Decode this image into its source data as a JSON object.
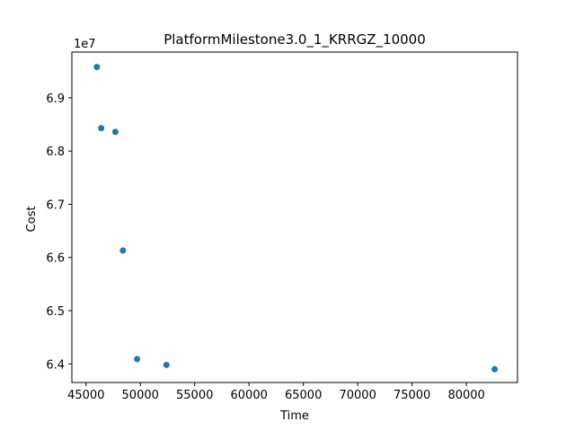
{
  "chart_data": {
    "type": "scatter",
    "title": "PlatformMilestone3.0_1_KRRGZ_10000",
    "xlabel": "Time",
    "ylabel": "Cost",
    "offset_text": "1e7",
    "xlim": [
      43700,
      84700
    ],
    "ylim": [
      6.365,
      6.986
    ],
    "y_scale_multiplier": 10000000,
    "xticks": [
      45000,
      50000,
      55000,
      60000,
      65000,
      70000,
      75000,
      80000
    ],
    "xtick_labels": [
      "45000",
      "50000",
      "55000",
      "60000",
      "65000",
      "70000",
      "75000",
      "80000"
    ],
    "yticks": [
      6.4,
      6.5,
      6.6,
      6.7,
      6.8,
      6.9
    ],
    "ytick_labels": [
      "6.4",
      "6.5",
      "6.6",
      "6.7",
      "6.8",
      "6.9"
    ],
    "grid": false,
    "marker_color": "#1f77b4",
    "points": [
      {
        "x": 46000,
        "y": 6.958
      },
      {
        "x": 46400,
        "y": 6.843
      },
      {
        "x": 47700,
        "y": 6.836
      },
      {
        "x": 48400,
        "y": 6.613
      },
      {
        "x": 49700,
        "y": 6.409
      },
      {
        "x": 52400,
        "y": 6.398
      },
      {
        "x": 82600,
        "y": 6.39
      }
    ]
  }
}
